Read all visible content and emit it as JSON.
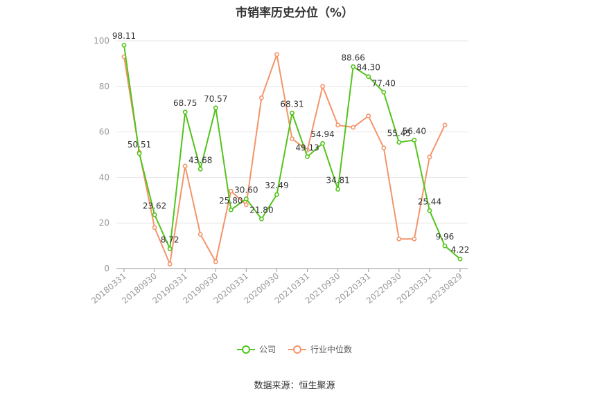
{
  "title": "市销率历史分位（%）",
  "source": "数据来源：恒生聚源",
  "colors": {
    "company": "#52c41a",
    "industry": "#f4946a",
    "grid": "#e6e6e6",
    "axis": "#999999",
    "label": "#333333"
  },
  "chart_data": {
    "type": "line",
    "title": "市销率历史分位（%）",
    "ylim": [
      0,
      100
    ],
    "yticks": [
      0,
      20,
      40,
      60,
      80,
      100
    ],
    "grid": "horizontal",
    "legend_position": "bottom-center",
    "x": [
      "20180331",
      "20180630",
      "20180930",
      "20181231",
      "20190331",
      "20190630",
      "20190930",
      "20191231",
      "20200331",
      "20200630",
      "20200930",
      "20201231",
      "20210331",
      "20210630",
      "20210930",
      "20211231",
      "20220331",
      "20220630",
      "20220930",
      "20221231",
      "20230331",
      "20230630",
      "20230829"
    ],
    "xtick_labels": [
      "20180331",
      "20180930",
      "20190331",
      "20190930",
      "20200331",
      "20200930",
      "20210331",
      "20210930",
      "20220331",
      "20220930",
      "20230331",
      "20230829"
    ],
    "series": [
      {
        "name": "公司",
        "color": "#52c41a",
        "values": [
          98.11,
          50.51,
          23.62,
          8.72,
          68.75,
          43.68,
          70.57,
          25.8,
          30.6,
          21.8,
          32.49,
          68.31,
          49.13,
          54.94,
          34.81,
          88.66,
          84.3,
          77.4,
          55.45,
          56.4,
          25.44,
          9.96,
          4.22
        ],
        "data_labels": [
          "98.11",
          "50.51",
          "23.62",
          "8.72",
          "68.75",
          "43.68",
          "70.57",
          "25.80",
          "30.60",
          "21.80",
          "32.49",
          "68.31",
          "49.13",
          "54.94",
          "34.81",
          "88.66",
          "84.30",
          "77.40",
          "55.45",
          "56.40",
          "25.44",
          "9.96",
          "4.22"
        ]
      },
      {
        "name": "行业中位数",
        "color": "#f4946a",
        "values": [
          93,
          51,
          18,
          2,
          45,
          15,
          3,
          34,
          28,
          75,
          94,
          57,
          52,
          80,
          63,
          62,
          67,
          53,
          13,
          13,
          49,
          63,
          null
        ]
      }
    ]
  }
}
